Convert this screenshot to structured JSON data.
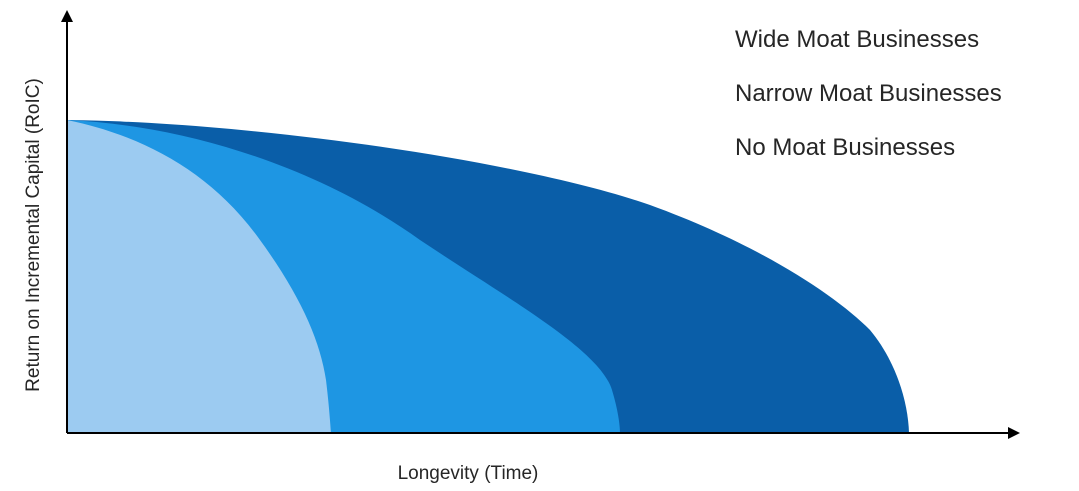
{
  "diagram": {
    "x_axis_label": "Longevity (Time)",
    "y_axis_label": "Return on Incremental Capital (RoIC)",
    "series": [
      {
        "label": "Wide Moat Businesses",
        "color": "#0a5ea8"
      },
      {
        "label": "Narrow Moat Businesses",
        "color": "#1e96e3"
      },
      {
        "label": "No Moat Businesses",
        "color": "#9ccbf1"
      }
    ],
    "axis_color": "#000000"
  }
}
